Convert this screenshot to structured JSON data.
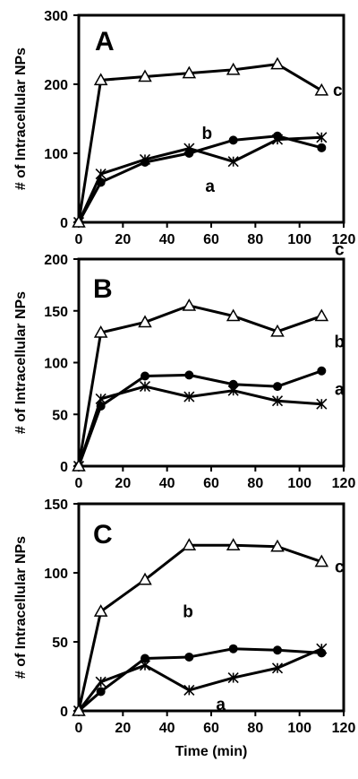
{
  "chart_data": [
    {
      "type": "line",
      "panel_label": "A",
      "ylabel": "# of Intracellular NPs",
      "xlabel": "",
      "xlim": [
        0,
        120
      ],
      "ylim": [
        0,
        300
      ],
      "xticks": [
        0,
        20,
        40,
        60,
        80,
        100,
        120
      ],
      "yticks": [
        0,
        100,
        200,
        300
      ],
      "series": [
        {
          "name": "a",
          "marker": "asterisk",
          "x": [
            0,
            10,
            30,
            50,
            70,
            90,
            110
          ],
          "y": [
            0,
            70,
            91,
            107,
            88,
            120,
            123
          ]
        },
        {
          "name": "b",
          "marker": "circle",
          "x": [
            0,
            10,
            30,
            50,
            70,
            90,
            110
          ],
          "y": [
            0,
            58,
            87,
            100,
            119,
            125,
            108
          ]
        },
        {
          "name": "c",
          "marker": "triangle",
          "x": [
            0,
            10,
            30,
            50,
            70,
            90,
            110
          ],
          "y": [
            0,
            206,
            211,
            216,
            221,
            229,
            191
          ]
        }
      ],
      "labels": {
        "a": "a",
        "b": "b",
        "c": "c"
      }
    },
    {
      "type": "line",
      "panel_label": "B",
      "ylabel": "# of Intracellular NPs",
      "xlabel": "",
      "xlim": [
        0,
        120
      ],
      "ylim": [
        0,
        200
      ],
      "xticks": [
        0,
        20,
        40,
        60,
        80,
        100,
        120
      ],
      "yticks": [
        0,
        50,
        100,
        150,
        200
      ],
      "series": [
        {
          "name": "a",
          "marker": "asterisk",
          "x": [
            0,
            10,
            30,
            50,
            70,
            90,
            110
          ],
          "y": [
            0,
            65,
            77,
            67,
            73,
            63,
            60
          ]
        },
        {
          "name": "b",
          "marker": "circle",
          "x": [
            0,
            10,
            30,
            50,
            70,
            90,
            110
          ],
          "y": [
            0,
            58,
            87,
            88,
            79,
            77,
            92
          ]
        },
        {
          "name": "c",
          "marker": "triangle",
          "x": [
            0,
            10,
            30,
            50,
            70,
            90,
            110
          ],
          "y": [
            0,
            129,
            139,
            155,
            145,
            130,
            145
          ]
        }
      ],
      "labels": {
        "a": "a",
        "b": "b",
        "c": "c"
      }
    },
    {
      "type": "line",
      "panel_label": "C",
      "ylabel": "# of Intracellular NPs",
      "xlabel": "Time (min)",
      "xlim": [
        0,
        120
      ],
      "ylim": [
        0,
        150
      ],
      "xticks": [
        0,
        20,
        40,
        60,
        80,
        100,
        120
      ],
      "yticks": [
        0,
        50,
        100,
        150
      ],
      "series": [
        {
          "name": "a",
          "marker": "asterisk",
          "x": [
            0,
            10,
            30,
            50,
            70,
            90,
            110
          ],
          "y": [
            0,
            21,
            33,
            15,
            24,
            31,
            45
          ]
        },
        {
          "name": "b",
          "marker": "circle",
          "x": [
            0,
            10,
            30,
            50,
            70,
            90,
            110
          ],
          "y": [
            0,
            14,
            38,
            39,
            45,
            44,
            42
          ]
        },
        {
          "name": "c",
          "marker": "triangle",
          "x": [
            0,
            10,
            30,
            50,
            70,
            90,
            110
          ],
          "y": [
            0,
            72,
            95,
            120,
            120,
            119,
            108
          ]
        }
      ],
      "labels": {
        "a": "a",
        "b": "b",
        "c": "c"
      }
    }
  ]
}
